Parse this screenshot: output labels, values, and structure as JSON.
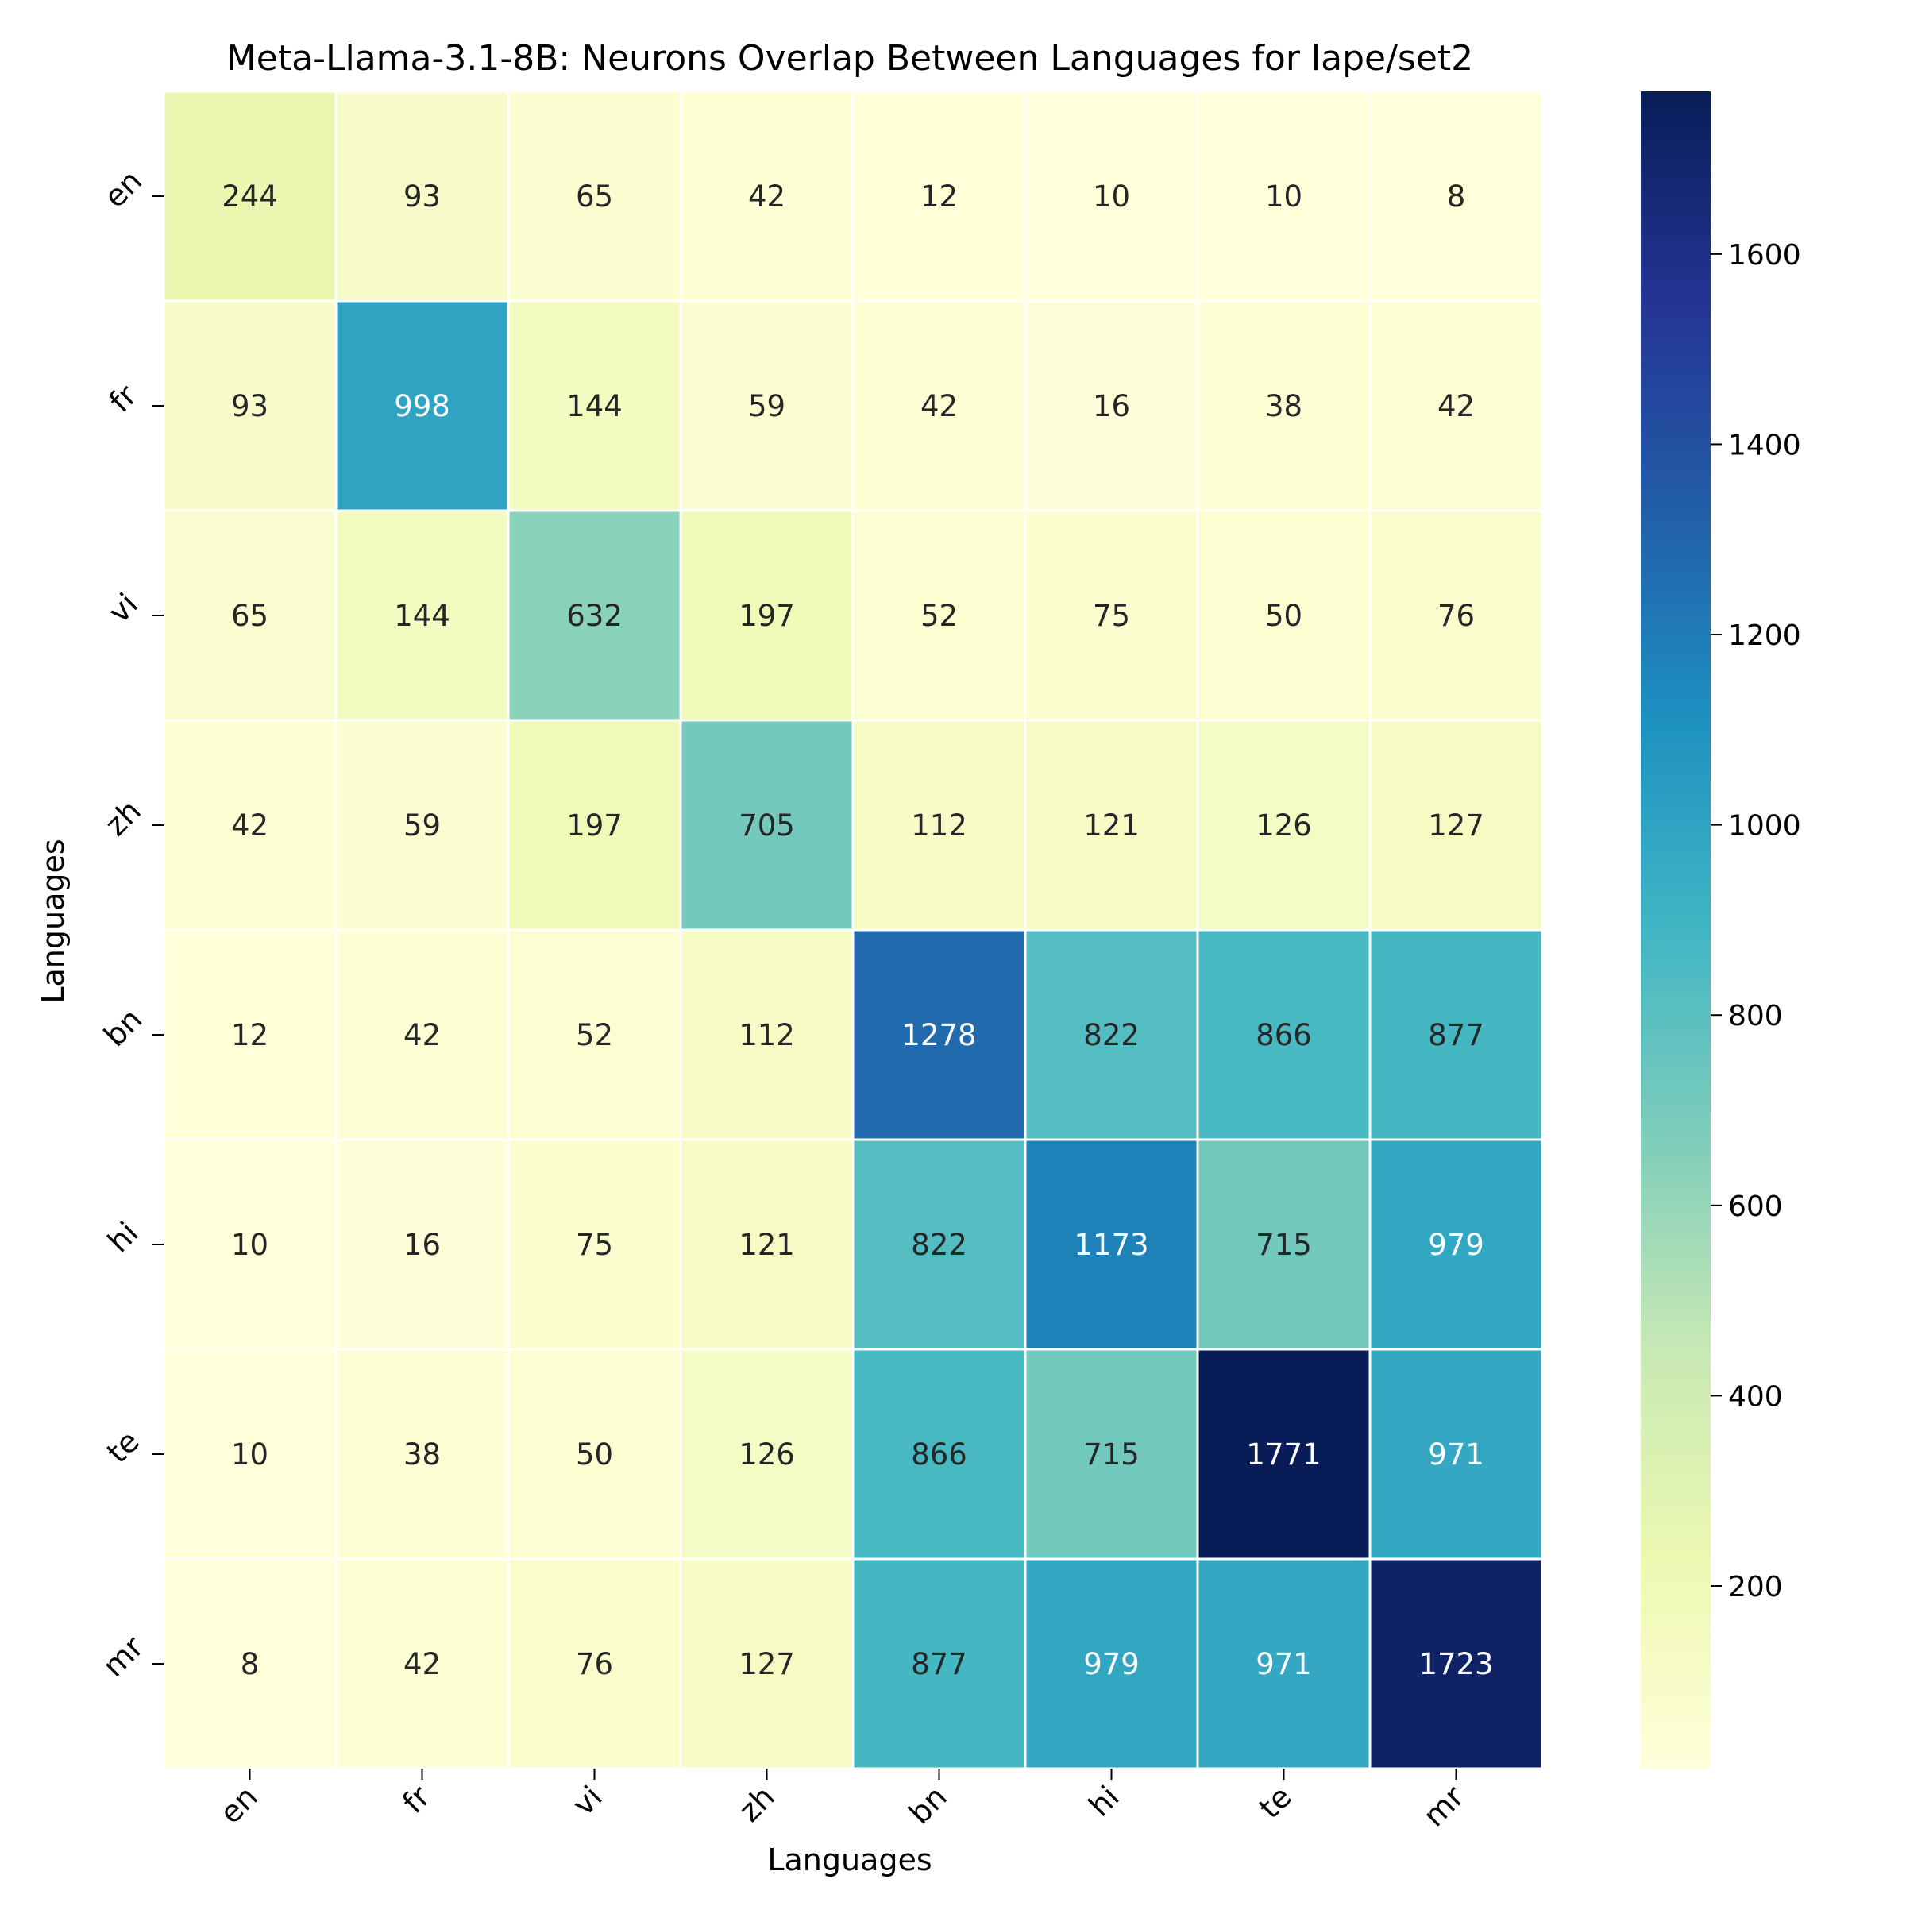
{
  "chart_data": {
    "type": "heatmap",
    "title": "Meta-Llama-3.1-8B: Neurons Overlap Between Languages for lape/set2",
    "xlabel": "Languages",
    "ylabel": "Languages",
    "x_categories": [
      "en",
      "fr",
      "vi",
      "zh",
      "bn",
      "hi",
      "te",
      "mr"
    ],
    "y_categories": [
      "en",
      "fr",
      "vi",
      "zh",
      "bn",
      "hi",
      "te",
      "mr"
    ],
    "values": [
      [
        244,
        93,
        65,
        42,
        12,
        10,
        10,
        8
      ],
      [
        93,
        998,
        144,
        59,
        42,
        16,
        38,
        42
      ],
      [
        65,
        144,
        632,
        197,
        52,
        75,
        50,
        76
      ],
      [
        42,
        59,
        197,
        705,
        112,
        121,
        126,
        127
      ],
      [
        12,
        42,
        52,
        112,
        1278,
        822,
        866,
        877
      ],
      [
        10,
        16,
        75,
        121,
        822,
        1173,
        715,
        979
      ],
      [
        10,
        38,
        50,
        126,
        866,
        715,
        1771,
        971
      ],
      [
        8,
        42,
        76,
        127,
        877,
        979,
        971,
        1723
      ]
    ],
    "colormap": "YlGnBu",
    "colorbar": {
      "min": 8,
      "max": 1771,
      "ticks": [
        200,
        400,
        600,
        800,
        1000,
        1200,
        1400,
        1600
      ]
    },
    "grid": true,
    "legend": "colorbar-right"
  }
}
